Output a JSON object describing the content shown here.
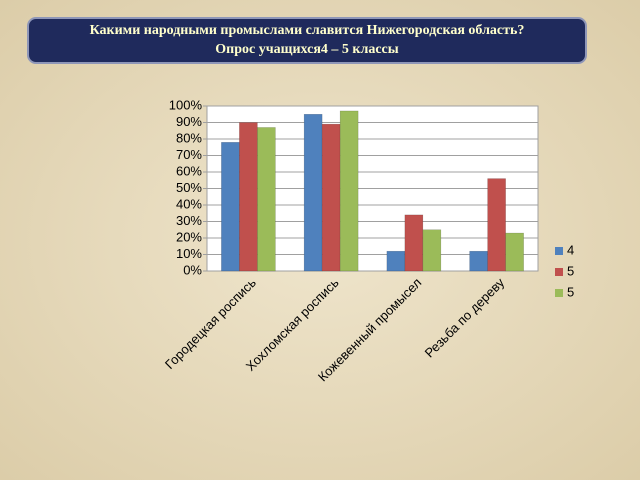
{
  "chart_data": {
    "type": "bar",
    "title": "Какими народными промыслами славится Нижегородская область?",
    "subtitle": "Опрос учащихся4 – 5 классы",
    "categories": [
      "Городецкая роспись",
      "Хохломская роспись",
      "Кожевенный промысел",
      "Резьба по дереву"
    ],
    "series": [
      {
        "name": "4",
        "color": "#4f81bd",
        "values": [
          78,
          95,
          12,
          12
        ]
      },
      {
        "name": "5",
        "color": "#c0504d",
        "values": [
          90,
          89,
          34,
          56
        ]
      },
      {
        "name": "5",
        "color": "#9bbb59",
        "values": [
          87,
          97,
          25,
          23
        ]
      }
    ],
    "ylim": [
      0,
      100
    ],
    "yticks": [
      {
        "value": 0,
        "label": "0%"
      },
      {
        "value": 10,
        "label": "10%"
      },
      {
        "value": 20,
        "label": "20%"
      },
      {
        "value": 30,
        "label": "30%"
      },
      {
        "value": 40,
        "label": "40%"
      },
      {
        "value": 50,
        "label": "50%"
      },
      {
        "value": 60,
        "label": "60%"
      },
      {
        "value": 70,
        "label": "70%"
      },
      {
        "value": 80,
        "label": "80%"
      },
      {
        "value": 90,
        "label": "90%"
      },
      {
        "value": 100,
        "label": "100%"
      }
    ],
    "grid": true,
    "legend": "right"
  }
}
